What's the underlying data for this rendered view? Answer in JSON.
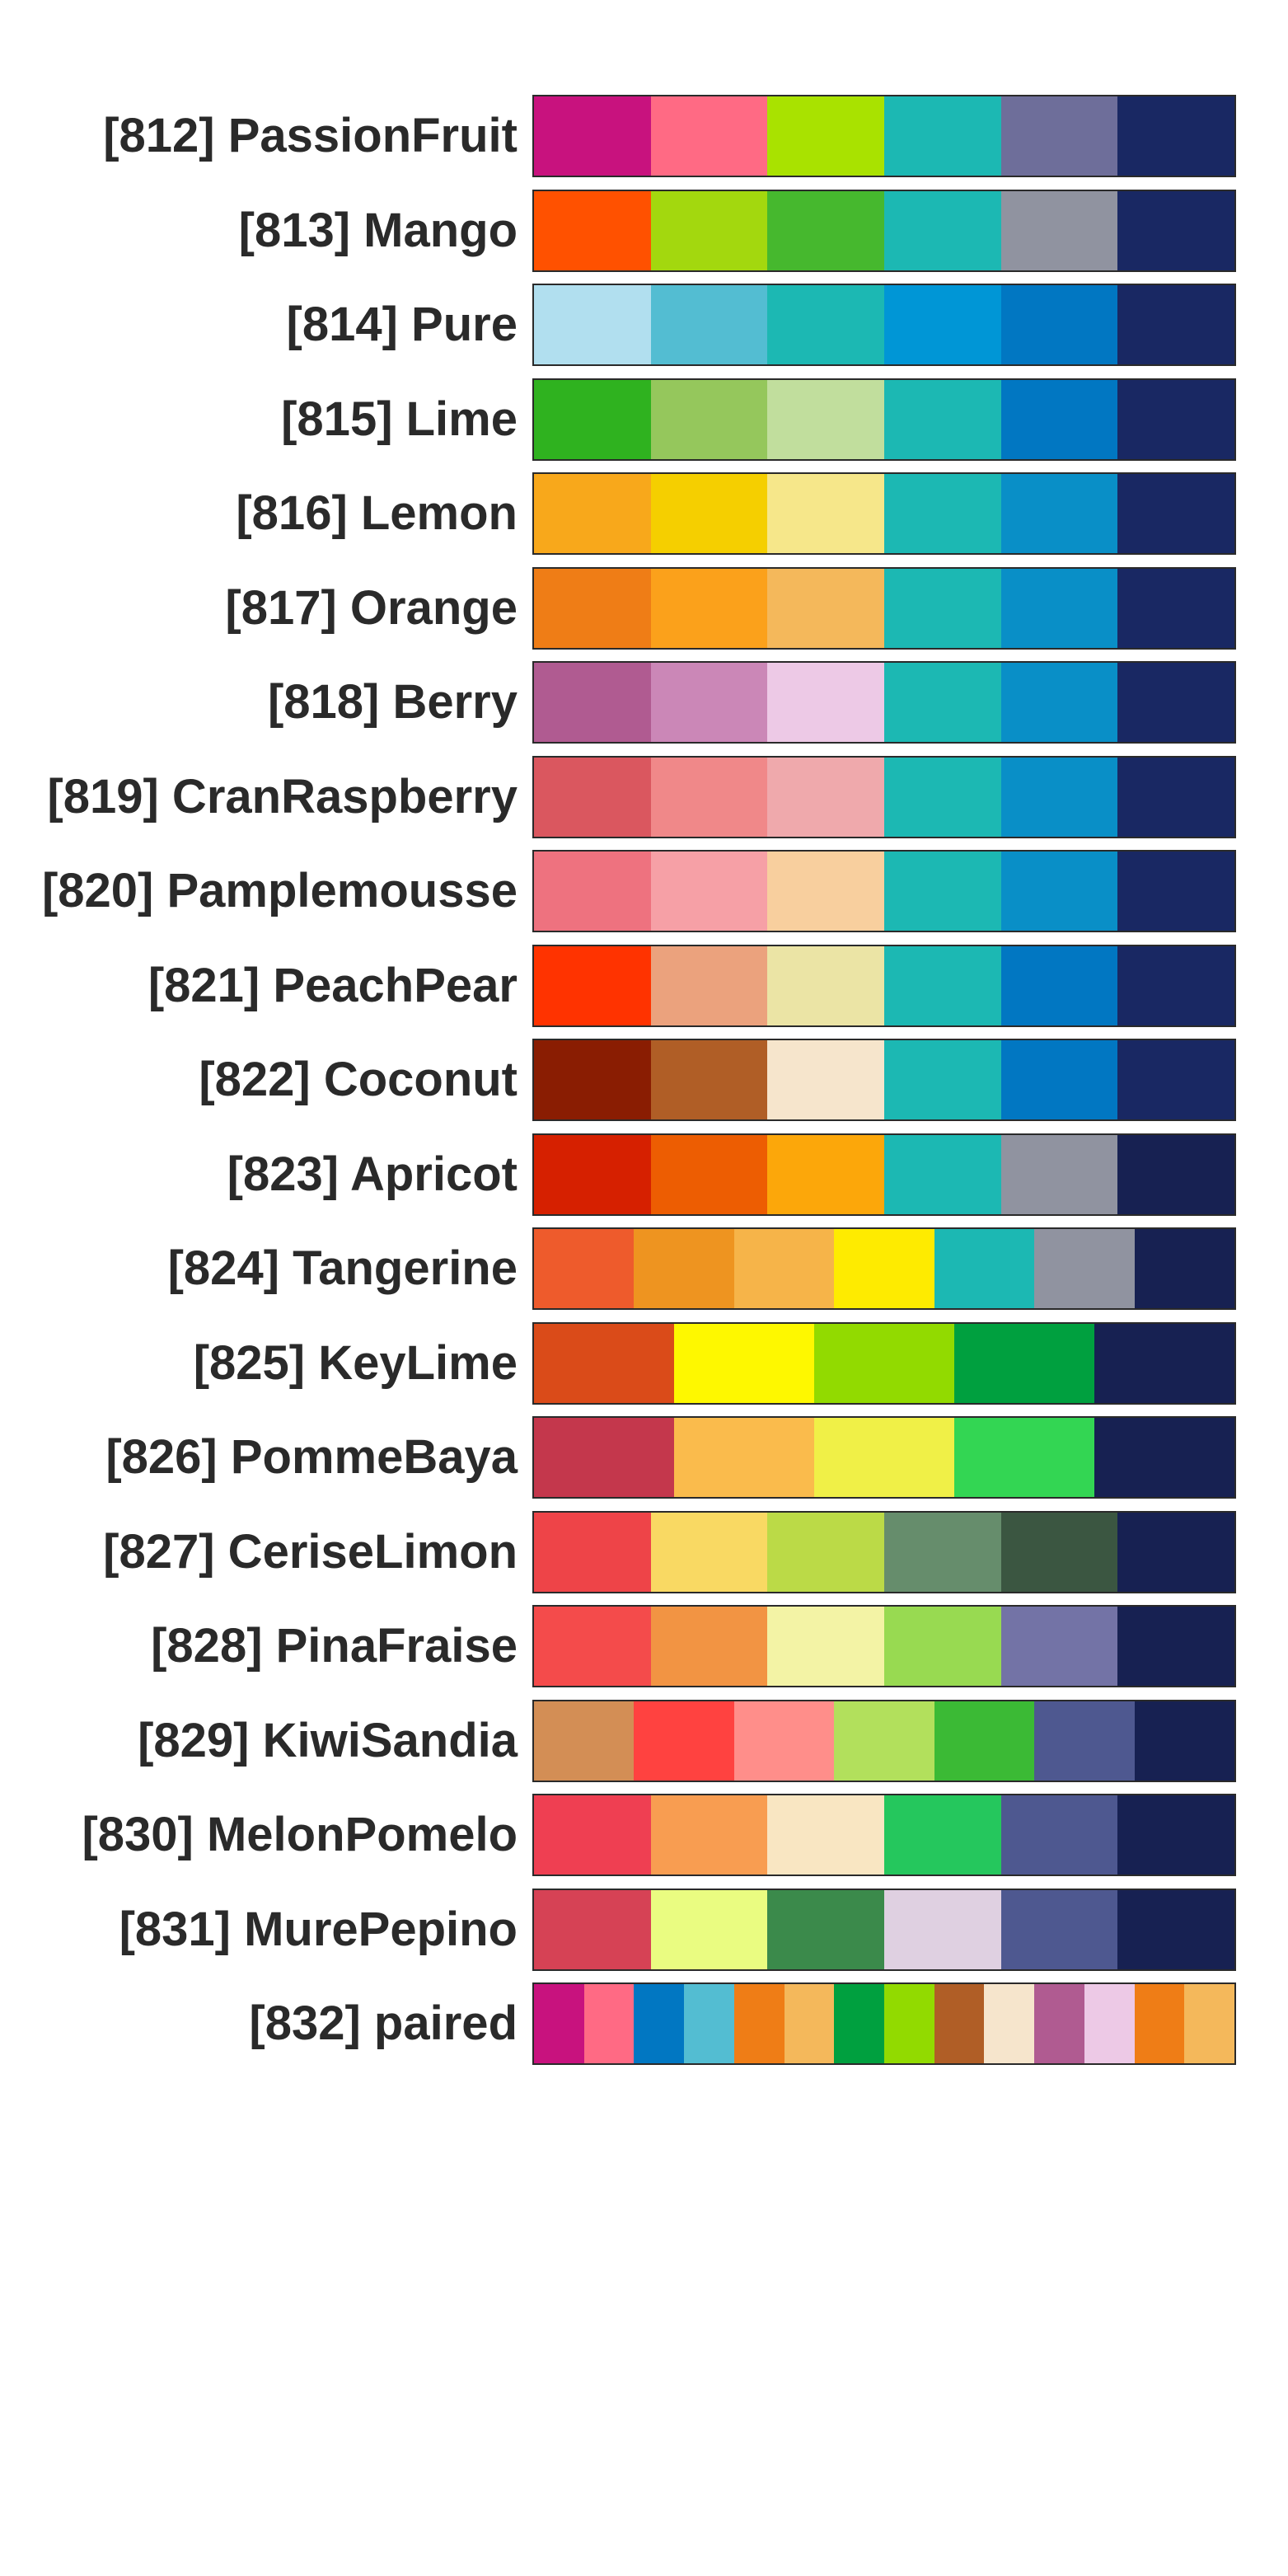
{
  "palettes": [
    {
      "label": "[812] PassionFruit",
      "colors": [
        "#C8127E",
        "#FF6A84",
        "#A9E200",
        "#1CB8B3",
        "#6E6E9A",
        "#192863"
      ]
    },
    {
      "label": "[813] Mango",
      "colors": [
        "#FF5100",
        "#A3D80E",
        "#46B82E",
        "#1CB8B3",
        "#9093A0",
        "#192863"
      ]
    },
    {
      "label": "[814] Pure",
      "colors": [
        "#B1DFEF",
        "#53BDD2",
        "#1CB8B3",
        "#0096D6",
        "#0177C2",
        "#192863"
      ]
    },
    {
      "label": "[815] Lime",
      "colors": [
        "#2FB21F",
        "#95C75C",
        "#C1DE9D",
        "#1CB8B3",
        "#0177C2",
        "#192863"
      ]
    },
    {
      "label": "[816] Lemon",
      "colors": [
        "#F8A81B",
        "#F5CF00",
        "#F6E78A",
        "#1CB8B3",
        "#098FC7",
        "#192863"
      ]
    },
    {
      "label": "[817] Orange",
      "colors": [
        "#EF7D16",
        "#FBA11B",
        "#F4B85B",
        "#1CB8B3",
        "#098FC7",
        "#192863"
      ]
    },
    {
      "label": "[818] Berry",
      "colors": [
        "#B05B91",
        "#CB87B7",
        "#EDC9E6",
        "#1CB8B3",
        "#098FC7",
        "#192863"
      ]
    },
    {
      "label": "[819] CranRaspberry",
      "colors": [
        "#DA575F",
        "#F08889",
        "#EFA9AC",
        "#1CB8B3",
        "#098FC7",
        "#192863"
      ]
    },
    {
      "label": "[820] Pamplemousse",
      "colors": [
        "#EE727F",
        "#F6A0A6",
        "#F8CF9E",
        "#1CB8B3",
        "#098FC7",
        "#192863"
      ]
    },
    {
      "label": "[821] PeachPear",
      "colors": [
        "#FF3300",
        "#EBA27D",
        "#EBE4A5",
        "#1CB8B3",
        "#0177C2",
        "#192863"
      ]
    },
    {
      "label": "[822] Coconut",
      "colors": [
        "#8A1D02",
        "#B05E26",
        "#F6E5CC",
        "#1CB8B3",
        "#0177C2",
        "#192863"
      ]
    },
    {
      "label": "[823] Apricot",
      "colors": [
        "#D62000",
        "#ED5D02",
        "#FCA70A",
        "#1CB8B3",
        "#9093A0",
        "#172152"
      ]
    },
    {
      "label": "[824] Tangerine",
      "colors": [
        "#EE5B2C",
        "#EE9420",
        "#F6B449",
        "#FEEB00",
        "#1CB8B3",
        "#9093A0",
        "#172152"
      ]
    },
    {
      "label": "[825] KeyLime",
      "colors": [
        "#DA4B19",
        "#FEF800",
        "#92DA00",
        "#00A03F",
        "#172152"
      ]
    },
    {
      "label": "[826] PommeBaya",
      "colors": [
        "#C4374C",
        "#FABB4C",
        "#F0F047",
        "#33D653",
        "#172152"
      ]
    },
    {
      "label": "[827] CeriseLimon",
      "colors": [
        "#EE4448",
        "#F9D963",
        "#BBDA47",
        "#668D6C",
        "#3B5641",
        "#172152"
      ]
    },
    {
      "label": "[828] PinaFraise",
      "colors": [
        "#F44B4B",
        "#F29443",
        "#F3F3A5",
        "#98DA51",
        "#7373A6",
        "#172152"
      ]
    },
    {
      "label": "[829] KiwiSandia",
      "colors": [
        "#D38E55",
        "#FF4240",
        "#FF8E8A",
        "#B2E05C",
        "#3BBA35",
        "#4E5890",
        "#172152"
      ]
    },
    {
      "label": "[830] MelonPomelo",
      "colors": [
        "#EF3F52",
        "#F89D51",
        "#F9E6C2",
        "#25C75D",
        "#4E5890",
        "#172152"
      ]
    },
    {
      "label": "[831] MurePepino",
      "colors": [
        "#D64255",
        "#EAFC81",
        "#3B8A4B",
        "#DFD0E1",
        "#4E5890",
        "#172152"
      ]
    },
    {
      "label": "[832] paired",
      "colors": [
        "#C8127E",
        "#FF6A84",
        "#0177C2",
        "#53BDD2",
        "#EF7D16",
        "#F4B85B",
        "#00A03F",
        "#92DA00",
        "#B05E26",
        "#F6E5CC",
        "#B05B91",
        "#EDC9E6",
        "#EF7D16",
        "#F4B85B"
      ]
    }
  ]
}
